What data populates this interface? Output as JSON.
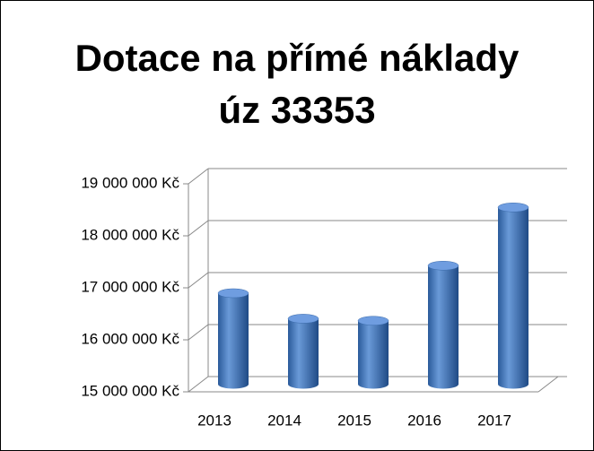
{
  "chart_data": {
    "type": "bar3d",
    "title": "Dotace na přímé náklady úz 33353",
    "categories": [
      "2013",
      "2014",
      "2015",
      "2016",
      "2017"
    ],
    "values": [
      16750000,
      16260000,
      16220000,
      17280000,
      18400000
    ],
    "color": "#4a7ebb",
    "ylim": [
      15000000,
      19000000
    ],
    "yticks": [
      {
        "value": 15000000,
        "label": "15 000 000 Kč"
      },
      {
        "value": 16000000,
        "label": "16 000 000 Kč"
      },
      {
        "value": 17000000,
        "label": "17 000 000 Kč"
      },
      {
        "value": 18000000,
        "label": "18 000 000 Kč"
      },
      {
        "value": 19000000,
        "label": "19 000 000 Kč"
      }
    ],
    "grid": true
  }
}
